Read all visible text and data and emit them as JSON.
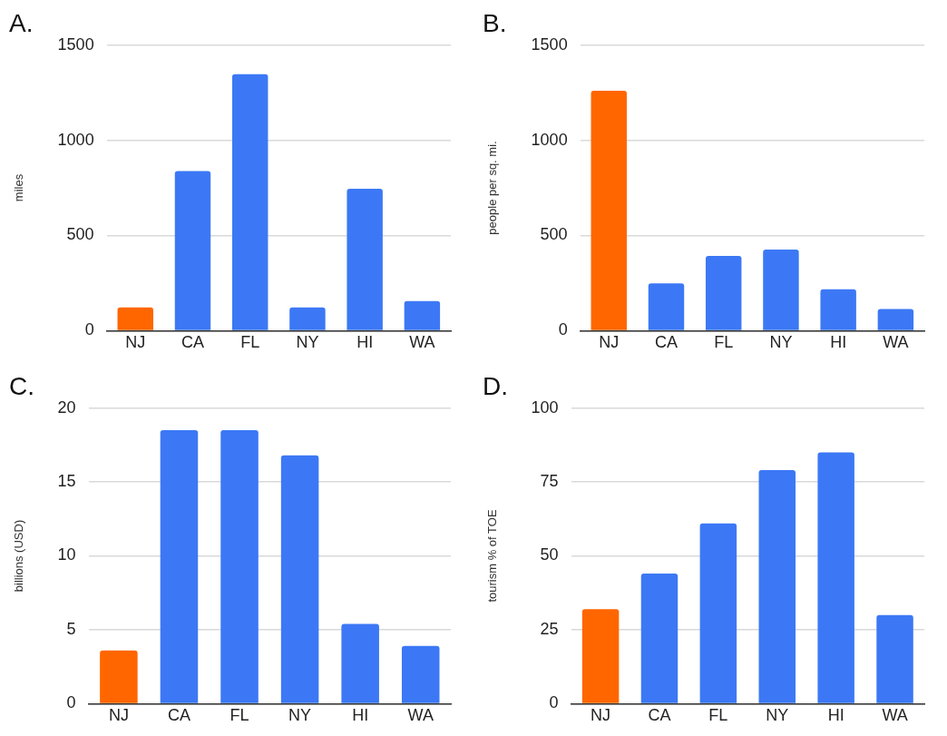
{
  "chart_data": [
    {
      "type": "bar",
      "title": "A.",
      "ylabel": "miles",
      "categories": [
        "NJ",
        "CA",
        "FL",
        "NY",
        "HI",
        "WA"
      ],
      "values": [
        122,
        838,
        1347,
        122,
        745,
        155
      ],
      "colors": [
        "#ff6600",
        "#3c78f5",
        "#3c78f5",
        "#3c78f5",
        "#3c78f5",
        "#3c78f5"
      ],
      "ylim": [
        0,
        1500
      ],
      "yticks": [
        0,
        500,
        1000,
        1500
      ],
      "grid": "y",
      "legend": false
    },
    {
      "type": "bar",
      "title": "B.",
      "ylabel": "people per sq. mi.",
      "categories": [
        "NJ",
        "CA",
        "FL",
        "NY",
        "HI",
        "WA"
      ],
      "values": [
        1260,
        249,
        393,
        426,
        217,
        114
      ],
      "colors": [
        "#ff6600",
        "#3c78f5",
        "#3c78f5",
        "#3c78f5",
        "#3c78f5",
        "#3c78f5"
      ],
      "ylim": [
        0,
        1500
      ],
      "yticks": [
        0,
        500,
        1000,
        1500
      ],
      "grid": "y",
      "legend": false
    },
    {
      "type": "bar",
      "title": "C.",
      "ylabel": "billions (USD)",
      "categories": [
        "NJ",
        "CA",
        "FL",
        "NY",
        "HI",
        "WA"
      ],
      "values": [
        3.6,
        18.5,
        18.5,
        16.8,
        5.4,
        3.9
      ],
      "colors": [
        "#ff6600",
        "#3c78f5",
        "#3c78f5",
        "#3c78f5",
        "#3c78f5",
        "#3c78f5"
      ],
      "ylim": [
        0,
        20
      ],
      "yticks": [
        0,
        5,
        10,
        15,
        20
      ],
      "grid": "y",
      "legend": false
    },
    {
      "type": "bar",
      "title": "D.",
      "ylabel": "tourism % of TOE",
      "categories": [
        "NJ",
        "CA",
        "FL",
        "NY",
        "HI",
        "WA"
      ],
      "values": [
        32,
        44,
        61,
        79,
        85,
        30
      ],
      "colors": [
        "#ff6600",
        "#3c78f5",
        "#3c78f5",
        "#3c78f5",
        "#3c78f5",
        "#3c78f5"
      ],
      "ylim": [
        0,
        100
      ],
      "yticks": [
        0,
        25,
        50,
        75,
        100
      ],
      "grid": "y",
      "legend": false
    }
  ]
}
